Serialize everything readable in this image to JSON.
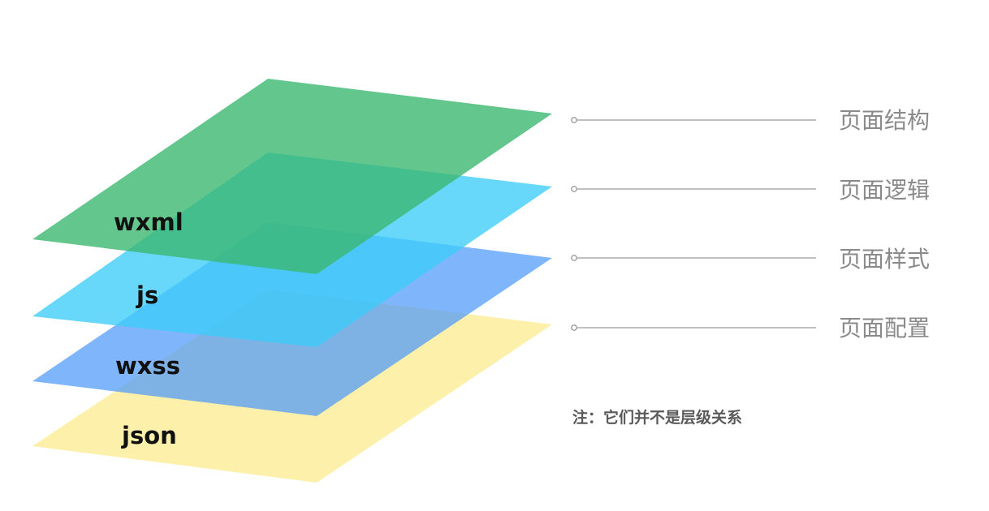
{
  "layers": [
    {
      "label": "wxml",
      "description": "页面结构",
      "color": "#3BB870",
      "opacity": 0.8
    },
    {
      "label": "js",
      "description": "页面逻辑",
      "color": "#3CCCF8",
      "opacity": 0.78
    },
    {
      "label": "wxss",
      "description": "页面样式",
      "color": "#4D9AFA",
      "opacity": 0.72
    },
    {
      "label": "json",
      "description": "页面配置",
      "color": "#FCEB8F",
      "opacity": 0.75
    }
  ],
  "note": "注：它们并不是层级关系",
  "colors": {
    "label_text": "#111111",
    "legend_text": "#8a8a8a",
    "note_text": "#5a5a5a",
    "leader_line": "#9a9a9a"
  }
}
